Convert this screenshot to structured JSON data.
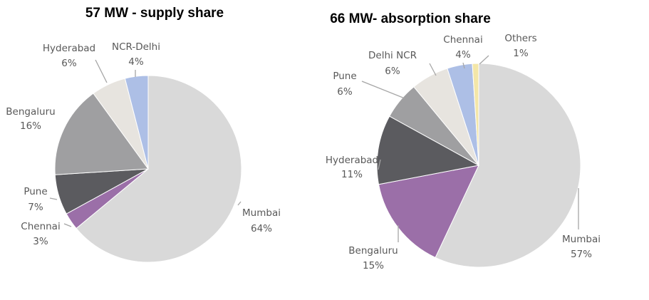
{
  "colors": {
    "Mumbai": "#d9d9d9",
    "Chennai": "#9b6fa8",
    "Pune": "#5b5b5f",
    "Bengaluru": "#9f9fa1",
    "Hyderabad": "#e7e4df",
    "NCR-Delhi": "#adbfe6",
    "Others": "#f3e6a8"
  },
  "chart_data": [
    {
      "type": "pie",
      "title": "57 MW - supply share",
      "slices": [
        {
          "label": "Mumbai",
          "value": 64,
          "display": "64%",
          "color_key": "Mumbai"
        },
        {
          "label": "Chennai",
          "value": 3,
          "display": "3%",
          "color_key": "Chennai"
        },
        {
          "label": "Pune",
          "value": 7,
          "display": "7%",
          "color_key": "Pune"
        },
        {
          "label": "Bengaluru",
          "value": 16,
          "display": "16%",
          "color_key": "Bengaluru"
        },
        {
          "label": "Hyderabad",
          "value": 6,
          "display": "6%",
          "color_key": "Hyderabad"
        },
        {
          "label": "NCR-Delhi",
          "value": 4,
          "display": "4%",
          "color_key": "NCR-Delhi"
        }
      ]
    },
    {
      "type": "pie",
      "title": "66 MW- absorption share",
      "slices": [
        {
          "label": "Mumbai",
          "value": 57,
          "display": "57%",
          "color_key": "Mumbai"
        },
        {
          "label": "Bengaluru",
          "value": 15,
          "display": "15%",
          "color_key": "Chennai"
        },
        {
          "label": "Hyderabad",
          "value": 11,
          "display": "11%",
          "color_key": "Pune"
        },
        {
          "label": "Pune",
          "value": 6,
          "display": "6%",
          "color_key": "Bengaluru"
        },
        {
          "label": "Delhi NCR",
          "value": 6,
          "display": "6%",
          "color_key": "Hyderabad"
        },
        {
          "label": "Chennai",
          "value": 4,
          "display": "4%",
          "color_key": "NCR-Delhi"
        },
        {
          "label": "Others",
          "value": 1,
          "display": "1%",
          "color_key": "Others"
        }
      ]
    }
  ]
}
